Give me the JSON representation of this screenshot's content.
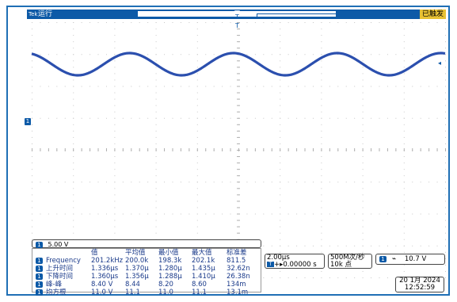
{
  "topbar": {
    "logo": "Tek",
    "run_status": "运行",
    "trigger_mark": "T",
    "trigger_status": "已触发"
  },
  "channel": {
    "marker": "1",
    "scale": "5.00 V"
  },
  "measurements": {
    "headers": [
      "值",
      "平均值",
      "最小值",
      "最大值",
      "标准差"
    ],
    "rows": [
      {
        "name": "Frequency",
        "value": "201.2kHz",
        "mean": "200.0k",
        "min": "198.3k",
        "max": "202.1k",
        "std": "811.5"
      },
      {
        "name": "上升时间",
        "value": "1.336μs",
        "mean": "1.370μ",
        "min": "1.280μ",
        "max": "1.435μ",
        "std": "32.62n"
      },
      {
        "name": "下降时间",
        "value": "1.360μs",
        "mean": "1.356μ",
        "min": "1.288μ",
        "max": "1.410μ",
        "std": "26.38n"
      },
      {
        "name": "峰-峰",
        "value": "8.40 V",
        "mean": "8.44",
        "min": "8.20",
        "max": "8.60",
        "std": "134m"
      },
      {
        "name": "均方根",
        "value": "11.0 V",
        "mean": "11.1",
        "min": "11.0",
        "max": "11.1",
        "std": "13.1m"
      }
    ]
  },
  "horizontal": {
    "scale": "2.00μs",
    "position": "+▸0.00000 s"
  },
  "sampling": {
    "rate": "500M次/秒",
    "points": "10k 点"
  },
  "trigger": {
    "channel": "1",
    "slope_icon": "falling-edge-icon",
    "level": "10.7 V"
  },
  "datetime": {
    "date": "20 1月 2024",
    "time": "12:52:59"
  },
  "colors": {
    "accent": "#0d5aa7",
    "trace": "#2b4fae",
    "status": "#e8c234"
  }
}
